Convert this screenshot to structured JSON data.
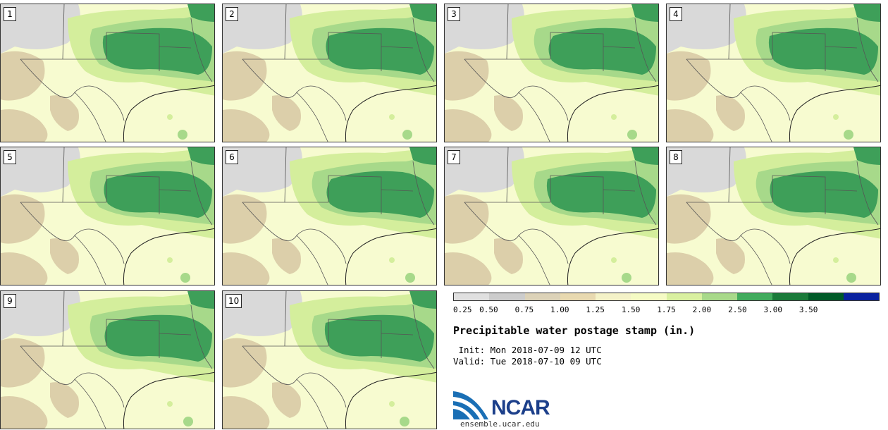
{
  "panels": [
    {
      "label": "1"
    },
    {
      "label": "2"
    },
    {
      "label": "3"
    },
    {
      "label": "4"
    },
    {
      "label": "5"
    },
    {
      "label": "6"
    },
    {
      "label": "7"
    },
    {
      "label": "8"
    },
    {
      "label": "9"
    },
    {
      "label": "10"
    }
  ],
  "colorbar": {
    "tick_labels": [
      "0.25",
      "0.50",
      "0.75",
      "1.00",
      "1.25",
      "1.50",
      "1.75",
      "2.00",
      "2.50",
      "3.00",
      "3.50"
    ],
    "colors": [
      "#e0e0e0",
      "#cccccc",
      "#dcd2b8",
      "#e8d9b0",
      "#f4f2c8",
      "#f5fbc4",
      "#d9f0a0",
      "#a8d98a",
      "#41ab5d",
      "#1a7a3a",
      "#005a28",
      "#0a22a0"
    ]
  },
  "title": "Precipitable water postage stamp (in.)",
  "init": " Init: Mon 2018-07-09 12 UTC",
  "valid": "Valid: Tue 2018-07-10 09 UTC",
  "logo": {
    "text": "NCAR",
    "site": "ensemble.ucar.edu"
  },
  "map_colors": {
    "base": "#f7fbd0",
    "light_green": "#d4ee9c",
    "mid_green": "#a7d98a",
    "dark_green": "#3e9f59",
    "tan": "#dccfaa",
    "gray": "#d9d9d9",
    "border": "#555555"
  }
}
